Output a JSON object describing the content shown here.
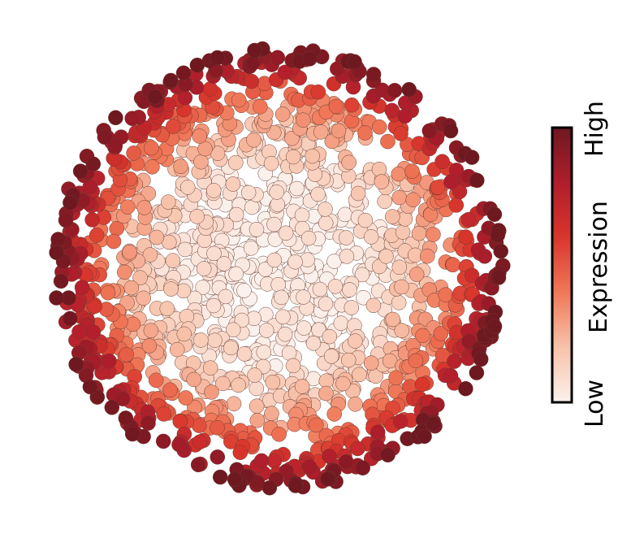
{
  "chart_data": {
    "type": "scatter",
    "title": "",
    "xlabel": "",
    "ylabel": "",
    "description_shape": "disc",
    "points_approx": 1500,
    "value_pattern": "expression increases radially from center (low) to rim (high)",
    "xlim": [
      -1.05,
      1.05
    ],
    "ylim": [
      -1.05,
      1.05
    ],
    "grid": false,
    "colorbar": {
      "label": "Expression",
      "low_label": "Low",
      "high_label": "High",
      "range": [
        0,
        1
      ],
      "colors": [
        "#fbf1ec",
        "#f7c2aa",
        "#f07858",
        "#d9362c",
        "#b01d2c",
        "#6e1820"
      ],
      "placement": "right"
    },
    "point_edge_color": "#6b3a2e"
  }
}
